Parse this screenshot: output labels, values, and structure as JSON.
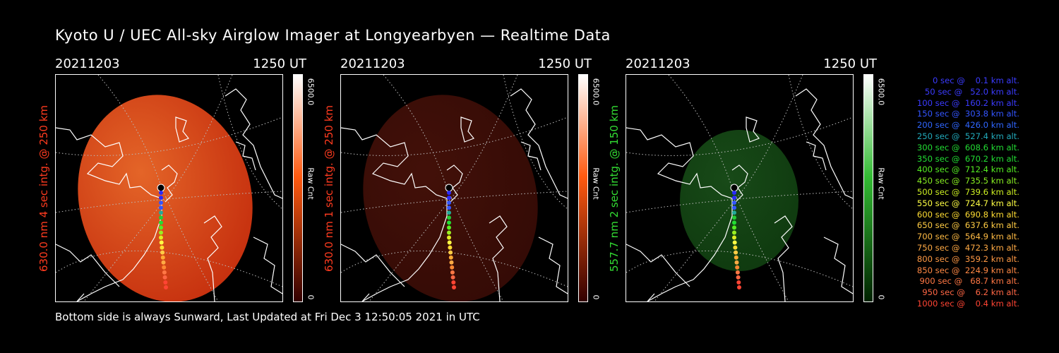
{
  "title": "Kyoto U / UEC All-sky Airglow Imager at Longyearbyen — Realtime Data",
  "footer": "Bottom side is always Sunward, Last Updated at Fri Dec  3 12:50:05 2021 in UTC",
  "colors": {
    "red_label": "#ff3b1f",
    "green_label": "#33dd33",
    "frame": "#ffffff"
  },
  "panels": [
    {
      "date": "20211203",
      "time": "1250 UT",
      "ylabel": "630.0 nm 4 sec intg. @ 250 km",
      "label_color": "#ff3b1f",
      "colorbar_max": "6500.0",
      "colorbar_min": "0",
      "colorbar_unit": "Raw Cnt",
      "colorbar_top": "#ffffff",
      "colorbar_mid": "#ff5a10",
      "colorbar_bottom": "#330000",
      "sky_color": "#d0320f",
      "sky_glow": "#f06a2a",
      "sky_brightness": 0.95
    },
    {
      "date": "20211203",
      "time": "1250 UT",
      "ylabel": "630.0 nm 1 sec intg. @ 250 km",
      "label_color": "#ff3b1f",
      "colorbar_max": "6500.0",
      "colorbar_min": "0",
      "colorbar_unit": "Raw Cnt",
      "colorbar_top": "#ffffff",
      "colorbar_mid": "#ff5a10",
      "colorbar_bottom": "#330000",
      "sky_color": "#3a0c06",
      "sky_glow": "#4a120a",
      "sky_brightness": 0.9
    },
    {
      "date": "20211203",
      "time": "1250 UT",
      "ylabel": "557.7 nm 2 sec intg. @ 150 km",
      "label_color": "#33dd33",
      "colorbar_max": "6500.0",
      "colorbar_min": "0",
      "colorbar_unit": "Raw Cnt",
      "colorbar_top": "#ffffff",
      "colorbar_mid": "#33bb33",
      "colorbar_bottom": "#002200",
      "sky_color": "#0f3a0f",
      "sky_glow": "#184a18",
      "sky_brightness": 0.9
    }
  ],
  "trajectory_colors": [
    "#222222",
    "#2a2aff",
    "#2a2aff",
    "#3355ff",
    "#3355ff",
    "#22aa99",
    "#22cc33",
    "#22dd33",
    "#55ee22",
    "#99ee22",
    "#ddee22",
    "#ffff44",
    "#ffdd33",
    "#ffcc44",
    "#ffaa33",
    "#ffaa44",
    "#ff8833",
    "#ff7744",
    "#ff6644",
    "#ff4433",
    "#ff4433"
  ],
  "legend": [
    {
      "text": "0 sec @    0.1 km alt.",
      "color": "#3b3bff"
    },
    {
      "text": "50 sec @   52.0 km alt.",
      "color": "#3b3bff"
    },
    {
      "text": "100 sec @  160.2 km alt.",
      "color": "#3b3bff"
    },
    {
      "text": "150 sec @  303.8 km alt.",
      "color": "#3355ff"
    },
    {
      "text": "200 sec @  426.0 km alt.",
      "color": "#2f66ff"
    },
    {
      "text": "250 sec @  527.4 km alt.",
      "color": "#22aabb"
    },
    {
      "text": "300 sec @  608.6 km alt.",
      "color": "#22dd33"
    },
    {
      "text": "350 sec @  670.2 km alt.",
      "color": "#22dd33"
    },
    {
      "text": "400 sec @  712.4 km alt.",
      "color": "#55ee22"
    },
    {
      "text": "450 sec @  735.5 km alt.",
      "color": "#88ee22"
    },
    {
      "text": "500 sec @  739.6 km alt.",
      "color": "#ccee22"
    },
    {
      "text": "550 sec @  724.7 km alt.",
      "color": "#ffff44"
    },
    {
      "text": "600 sec @  690.8 km alt.",
      "color": "#ffdd33"
    },
    {
      "text": "650 sec @  637.6 km alt.",
      "color": "#ffcc44"
    },
    {
      "text": "700 sec @  564.9 km alt.",
      "color": "#ffbb44"
    },
    {
      "text": "750 sec @  472.3 km alt.",
      "color": "#ffaa44"
    },
    {
      "text": "800 sec @  359.2 km alt.",
      "color": "#ff9944"
    },
    {
      "text": "850 sec @  224.9 km alt.",
      "color": "#ff8844"
    },
    {
      "text": "900 sec @   68.7 km alt.",
      "color": "#ff7744"
    },
    {
      "text": "950 sec @    6.2 km alt.",
      "color": "#ff6644"
    },
    {
      "text": "1000 sec @    0.4 km alt.",
      "color": "#ff4433"
    }
  ]
}
